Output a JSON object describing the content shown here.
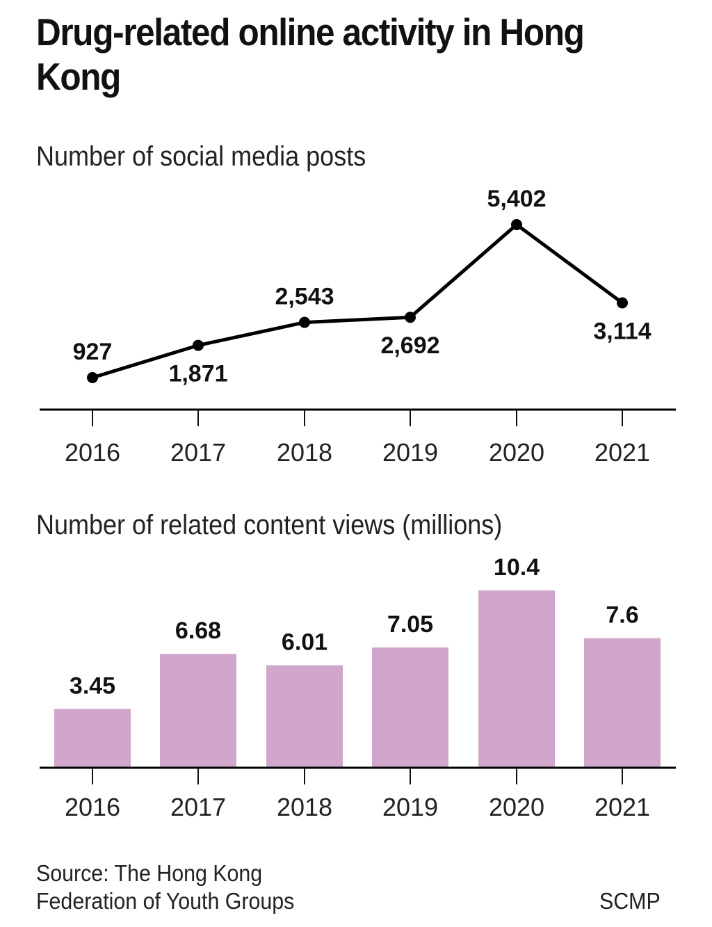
{
  "title": "Drug-related online activity in Hong Kong",
  "footer": {
    "source": "Source: The Hong Kong Federation of Youth Groups",
    "brand": "SCMP"
  },
  "colors": {
    "line": "#000000",
    "bar": "#d0a6cb",
    "axis": "#000000"
  },
  "chart_data": [
    {
      "type": "line",
      "title": "Number of social media posts",
      "categories": [
        "2016",
        "2017",
        "2018",
        "2019",
        "2020",
        "2021"
      ],
      "values": [
        927,
        1871,
        2543,
        2692,
        5402,
        3114
      ],
      "labels": [
        "927",
        "1,871",
        "2,543",
        "2,692",
        "5,402",
        "3,114"
      ],
      "label_position": [
        "above",
        "below",
        "above",
        "below",
        "above",
        "below"
      ],
      "xlabel": "",
      "ylabel": "",
      "ylim": [
        0,
        5600
      ],
      "grid": false,
      "legend": "none"
    },
    {
      "type": "bar",
      "title": "Number of related content views (millions)",
      "categories": [
        "2016",
        "2017",
        "2018",
        "2019",
        "2020",
        "2021"
      ],
      "values": [
        3.45,
        6.68,
        6.01,
        7.05,
        10.4,
        7.6
      ],
      "labels": [
        "3.45",
        "6.68",
        "6.01",
        "7.05",
        "10.4",
        "7.6"
      ],
      "xlabel": "",
      "ylabel": "",
      "ylim": [
        0,
        10.4
      ],
      "grid": false,
      "legend": "none"
    }
  ]
}
